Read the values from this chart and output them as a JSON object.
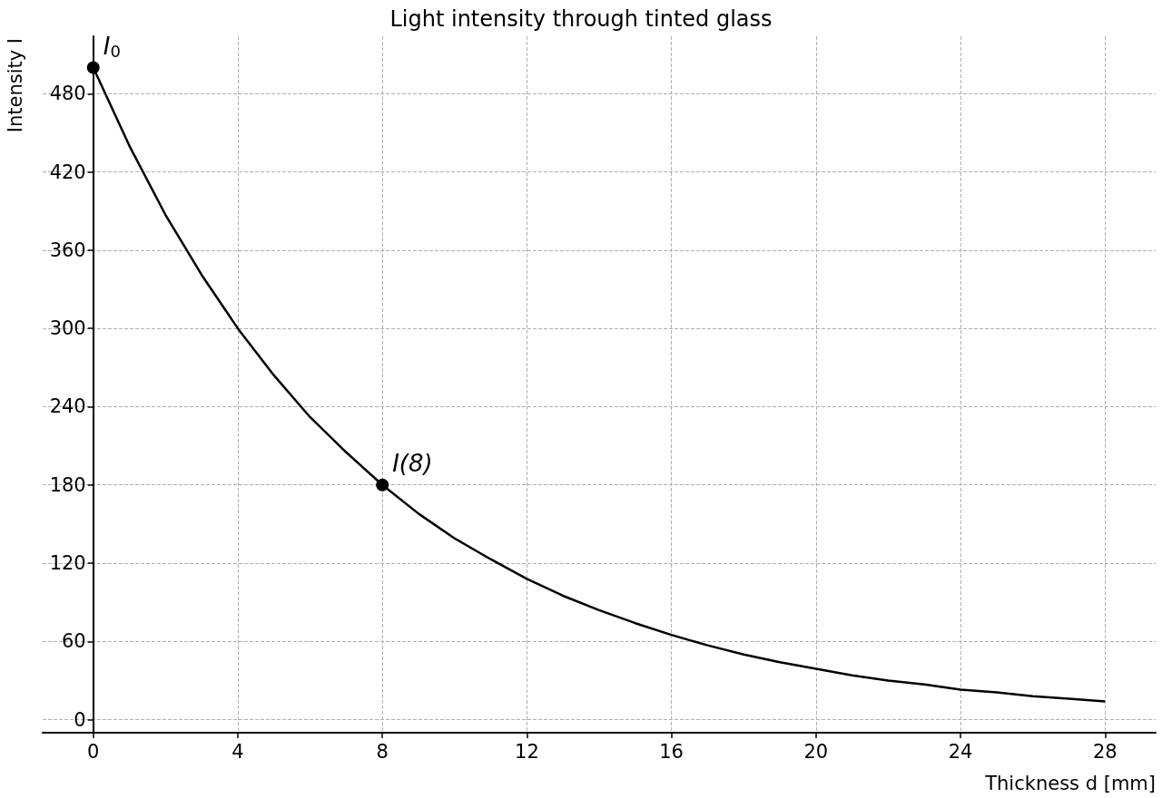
{
  "chart_data": {
    "type": "line",
    "title": "Light intensity through tinted glass",
    "xlabel": "Thickness d [mm]",
    "ylabel": "Intensity I",
    "x": [
      0,
      1,
      2,
      3,
      4,
      5,
      6,
      7,
      8,
      9,
      10,
      11,
      12,
      13,
      14,
      15,
      16,
      17,
      18,
      19,
      20,
      21,
      22,
      23,
      24,
      25,
      26,
      27,
      28
    ],
    "series": [
      {
        "color": "#000000",
        "marker": "none",
        "values": [
          500,
          440,
          387,
          341,
          300,
          264,
          232,
          205,
          180,
          158,
          139,
          123,
          108,
          95,
          84,
          74,
          65,
          57,
          50,
          44,
          39,
          34,
          30,
          27,
          23,
          21,
          18,
          16,
          14
        ]
      },
      {
        "type": "scatter",
        "color": "#000000",
        "marker": "circle",
        "x": [
          0,
          8
        ],
        "values": [
          500,
          180
        ]
      }
    ],
    "annotations": [
      {
        "text": "I$_{0}$",
        "x": 0,
        "y": 500
      },
      {
        "text": "I(8)",
        "x": 8,
        "y": 180
      }
    ],
    "xlim": [
      -1.4,
      29.4
    ],
    "ylim": [
      -10,
      524
    ],
    "xticks": [
      0,
      4,
      8,
      12,
      16,
      20,
      24,
      28
    ],
    "yticks": [
      0,
      60,
      120,
      180,
      240,
      300,
      360,
      420,
      480
    ],
    "grid": true,
    "line_style": "solid"
  }
}
